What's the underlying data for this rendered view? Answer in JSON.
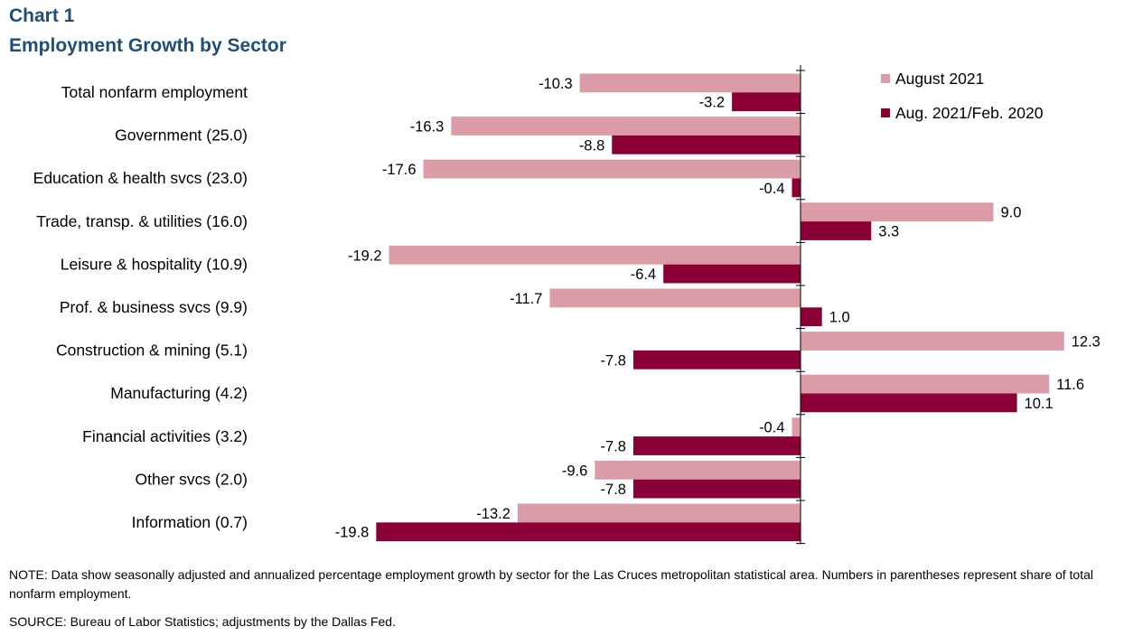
{
  "header": {
    "chart_label": "Chart 1",
    "title": "Employment  Growth by Sector"
  },
  "footer": {
    "note": "NOTE: Data show seasonally adjusted and annualized percentage employment growth by sector for the Las Cruces metropolitan statistical area. Numbers in parentheses represent share of total nonfarm employment.",
    "source": "SOURCE: Bureau of Labor Statistics; adjustments by the Dallas Fed."
  },
  "colors": {
    "august_2021": "#dc9ca7",
    "aug2021_feb2020": "#8b0037",
    "title": "#1f4e79"
  },
  "chart_data": {
    "type": "bar",
    "orientation": "horizontal",
    "title": "Employment  Growth by Sector",
    "categories": [
      "Total nonfarm employment",
      "Government (25.0)",
      "Education & health svcs (23.0)",
      "Trade, transp. & utilities (16.0)",
      "Leisure & hospitality (10.9)",
      "Prof. & business svcs  (9.9)",
      "Construction & mining (5.1)",
      "Manufacturing (4.2)",
      "Financial activities (3.2)",
      "Other svcs (2.0)",
      "Information (0.7)"
    ],
    "series": [
      {
        "name": "August 2021",
        "color": "#dc9ca7",
        "values": [
          -10.3,
          -16.3,
          -17.6,
          9.0,
          -19.2,
          -11.7,
          12.3,
          11.6,
          -0.4,
          -9.6,
          -13.2
        ]
      },
      {
        "name": "Aug. 2021/Feb. 2020",
        "color": "#8b0037",
        "values": [
          -3.2,
          -8.8,
          -0.4,
          3.3,
          -6.4,
          1.0,
          -7.8,
          10.1,
          -7.8,
          -7.8,
          -19.8
        ]
      }
    ],
    "xlim": [
      -20.3,
      12.6
    ],
    "legend": "top-right",
    "grid": false
  }
}
